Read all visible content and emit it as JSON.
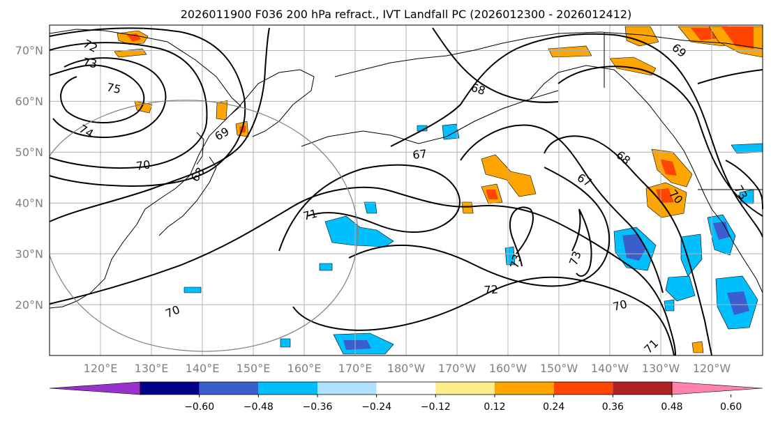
{
  "title": "2026011900 F036 200 hPa refract., IVT Landfall PC (2026012300 - 2026012412)",
  "map": {
    "lon_range": [
      110,
      250
    ],
    "lat_range": [
      10,
      75
    ],
    "lat_ticks": [
      "70°N",
      "60°N",
      "50°N",
      "40°N",
      "30°N",
      "20°N"
    ],
    "lon_ticks": [
      "120°E",
      "130°E",
      "140°E",
      "150°E",
      "160°E",
      "170°E",
      "180°W",
      "170°W",
      "160°W",
      "150°W",
      "140°W",
      "130°W",
      "120°W"
    ],
    "contour_labels": [
      "72",
      "73",
      "75",
      "74",
      "70",
      "68",
      "69",
      "71",
      "67",
      "68",
      "68",
      "67",
      "70",
      "73",
      "73",
      "72",
      "70",
      "71",
      "70",
      "73",
      "69"
    ]
  },
  "colorbar": {
    "colors": [
      "#9932cc",
      "#00008b",
      "#3a5fcd",
      "#00bfff",
      "#b0e2ff",
      "#ffffff",
      "#ffec8b",
      "#ffa500",
      "#ff4500",
      "#b22222",
      "#ff82ab"
    ],
    "tick_labels": [
      "−0.60",
      "−0.48",
      "−0.36",
      "−0.24",
      "−0.12",
      "0.12",
      "0.24",
      "0.36",
      "0.48",
      "0.60"
    ]
  }
}
